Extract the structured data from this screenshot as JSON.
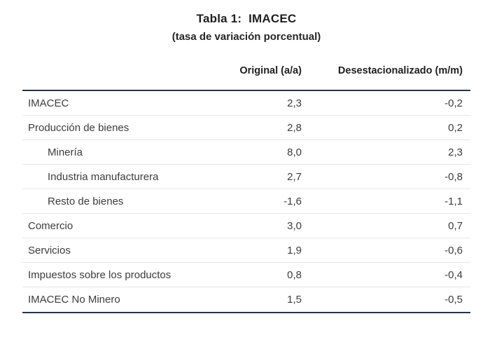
{
  "title": "Tabla 1:  IMACEC",
  "subtitle": "(tasa de variación porcentual)",
  "table": {
    "columns": [
      "Original (a/a)",
      "Desestacionalizado (m/m)"
    ],
    "rows": [
      {
        "label": "IMACEC",
        "indent": false,
        "original": "2,3",
        "desestacionalizado": "-0,2"
      },
      {
        "label": "Producción de bienes",
        "indent": false,
        "original": "2,8",
        "desestacionalizado": "0,2"
      },
      {
        "label": "Minería",
        "indent": true,
        "original": "8,0",
        "desestacionalizado": "2,3"
      },
      {
        "label": "Industria manufacturera",
        "indent": true,
        "original": "2,7",
        "desestacionalizado": "-0,8"
      },
      {
        "label": "Resto de bienes",
        "indent": true,
        "original": "-1,6",
        "desestacionalizado": "-1,1"
      },
      {
        "label": "Comercio",
        "indent": false,
        "original": "3,0",
        "desestacionalizado": "0,7"
      },
      {
        "label": "Servicios",
        "indent": false,
        "original": "1,9",
        "desestacionalizado": "-0,6"
      },
      {
        "label": "Impuestos sobre los productos",
        "indent": false,
        "original": "0,8",
        "desestacionalizado": "-0,4"
      },
      {
        "label": "IMACEC No Minero",
        "indent": false,
        "original": "1,5",
        "desestacionalizado": "-0,5"
      }
    ]
  },
  "colors": {
    "border_dark": "#273246",
    "row_separator": "#e7e7e7",
    "body_text": "#3c3c3c",
    "heading_text": "#1f1f1f",
    "background": "#ffffff"
  }
}
